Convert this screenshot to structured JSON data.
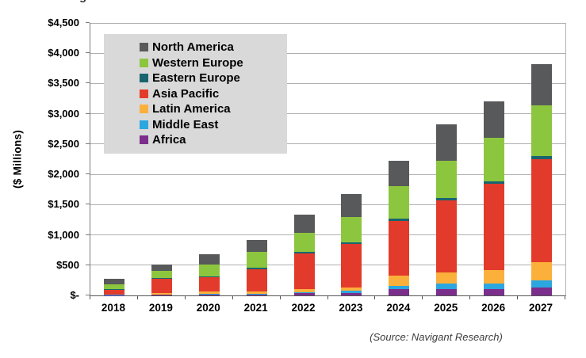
{
  "page": {
    "title_fragment": "g"
  },
  "source_note": "(Source: Navigant Research)",
  "chart_data": {
    "type": "bar",
    "stacked": true,
    "title": "",
    "xlabel": "",
    "ylabel": "($ Millions)",
    "ylim": [
      0,
      4500
    ],
    "ytick_step": 500,
    "ytick_labels": [
      "$-",
      "$500",
      "$1,000",
      "$1,500",
      "$2,000",
      "$2,500",
      "$3,000",
      "$3,500",
      "$4,000",
      "$4,500"
    ],
    "grid": true,
    "legend_position": "upper-left-inside",
    "categories": [
      "2018",
      "2019",
      "2020",
      "2021",
      "2022",
      "2023",
      "2024",
      "2025",
      "2026",
      "2027"
    ],
    "series": [
      {
        "name": "North America",
        "color": "#58595B",
        "values": [
          90,
          115,
          170,
          195,
          300,
          380,
          420,
          590,
          600,
          680
        ]
      },
      {
        "name": "Western Europe",
        "color": "#8CC63E",
        "values": [
          85,
          105,
          195,
          255,
          325,
          420,
          535,
          615,
          730,
          835
        ]
      },
      {
        "name": "Eastern Europe",
        "color": "#19646F",
        "values": [
          10,
          15,
          20,
          25,
          25,
          25,
          40,
          40,
          40,
          50
        ]
      },
      {
        "name": "Asia Pacific",
        "color": "#E33B2B",
        "values": [
          75,
          235,
          240,
          365,
          585,
          730,
          905,
          1190,
          1420,
          1700
        ]
      },
      {
        "name": "Latin America",
        "color": "#FBB03B",
        "values": [
          10,
          25,
          35,
          40,
          50,
          50,
          165,
          195,
          220,
          295
        ]
      },
      {
        "name": "Middle East",
        "color": "#2BA7DF",
        "values": [
          5,
          10,
          10,
          15,
          20,
          40,
          50,
          80,
          90,
          125
        ]
      },
      {
        "name": "Africa",
        "color": "#7C2E8C",
        "values": [
          5,
          10,
          15,
          15,
          35,
          35,
          110,
          110,
          110,
          130
        ]
      }
    ],
    "totals": [
      280,
      515,
      685,
      910,
      1340,
      1680,
      2225,
      2820,
      3210,
      3815
    ]
  }
}
